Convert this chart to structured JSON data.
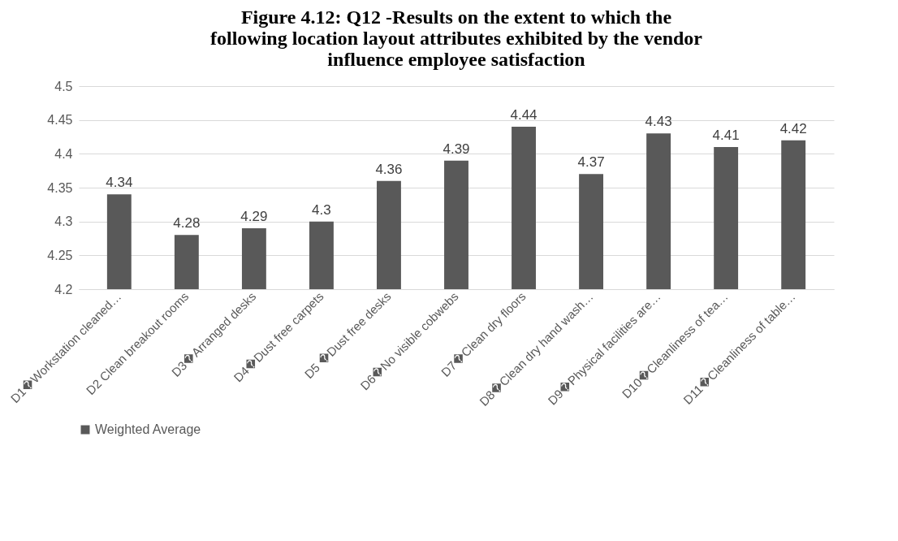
{
  "chart_data": {
    "type": "bar",
    "title": "Figure 4.12: Q12 -Results on the extent to which the following location layout attributes exhibited by the vendor influence employee satisfaction",
    "categories": [
      "D1�Workstation cleaned…",
      "D2 Clean breakout rooms",
      "D3�Arranged desks",
      "D4�Dust free carpets",
      "D5 �Dust free desks",
      "D6�No visible cobwebs",
      "D7�Clean dry floors",
      "D8�Clean dry hand wash…",
      "D9�Physical facilities are…",
      "D10�Cleanliness of tea…",
      "D11�Cleanliness of table…"
    ],
    "series": [
      {
        "name": "Weighted Average",
        "color": "#595959",
        "values": [
          4.34,
          4.28,
          4.29,
          4.3,
          4.36,
          4.39,
          4.44,
          4.37,
          4.43,
          4.41,
          4.42
        ]
      }
    ],
    "ylim": [
      4.2,
      4.5
    ],
    "yticks": [
      4.2,
      4.25,
      4.3,
      4.35,
      4.4,
      4.45,
      4.5
    ],
    "grid": "y",
    "legend": "bottom",
    "data_labels": true
  }
}
